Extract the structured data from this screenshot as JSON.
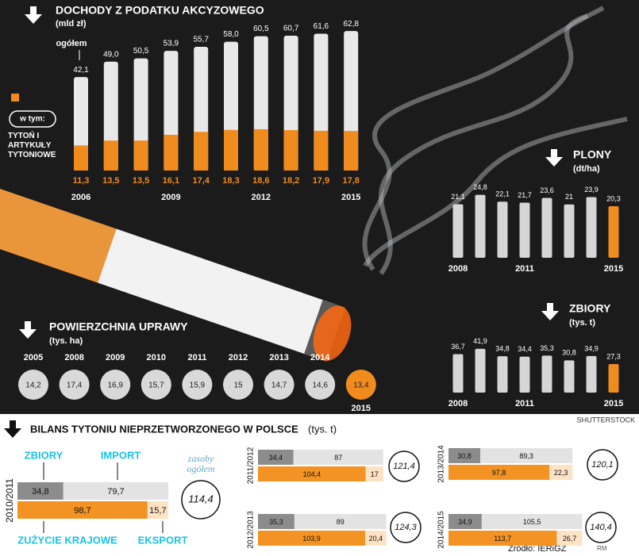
{
  "chart_data": [
    {
      "type": "cigarette_bar",
      "title": "DOCHODY Z PODATKU AKCYZOWEGO",
      "subtitle": "(mld zł)",
      "legend_note": "w tym:",
      "categories": [
        "2006",
        null,
        null,
        "2009",
        null,
        null,
        "2012",
        null,
        null,
        "2015"
      ],
      "series": [
        {
          "name": "ogółem",
          "color": "#e8e8e8",
          "values": [
            42.1,
            49.0,
            50.5,
            53.9,
            55.7,
            58.0,
            60.5,
            60.7,
            61.6,
            62.8
          ],
          "value_labels": [
            "42,1",
            "49,0",
            "50,5",
            "53,9",
            "55,7",
            "58,0",
            "60,5",
            "60,7",
            "61,6",
            "62,8"
          ]
        },
        {
          "name": "TYTOŃ I ARTYKUŁY TYTONIOWE",
          "color": "#f08c1e",
          "values": [
            11.3,
            13.5,
            13.5,
            16.1,
            17.4,
            18.3,
            18.6,
            18.2,
            17.9,
            17.8
          ],
          "value_labels": [
            "11,3",
            "13,5",
            "13,5",
            "16,1",
            "17,4",
            "18,3",
            "18,6",
            "18,2",
            "17,9",
            "17,8"
          ]
        }
      ]
    },
    {
      "type": "bar",
      "title": "PLONY",
      "subtitle": "(dt/ha)",
      "categories": [
        "2008",
        null,
        null,
        "2011",
        null,
        null,
        null,
        "2015"
      ],
      "values": [
        21.1,
        24.8,
        22.1,
        21.7,
        23.6,
        21,
        23.9,
        20.3
      ],
      "value_labels": [
        "21,1",
        "24,8",
        "22,1",
        "21,7",
        "23,6",
        "21",
        "23,9",
        "20,3"
      ],
      "colors": [
        "#d6d6d6",
        "#d6d6d6",
        "#d6d6d6",
        "#d6d6d6",
        "#d6d6d6",
        "#d6d6d6",
        "#d6d6d6",
        "#f08c1e"
      ]
    },
    {
      "type": "bar",
      "title": "ZBIORY",
      "subtitle": "(tys. t)",
      "categories": [
        "2008",
        null,
        null,
        "2011",
        null,
        null,
        null,
        "2015"
      ],
      "values": [
        36.7,
        41.9,
        34.8,
        34.4,
        35.3,
        30.8,
        34.9,
        27.3
      ],
      "value_labels": [
        "36,7",
        "41,9",
        "34,8",
        "34,4",
        "35,3",
        "30,8",
        "34,9",
        "27,3"
      ],
      "colors": [
        "#d6d6d6",
        "#d6d6d6",
        "#d6d6d6",
        "#d6d6d6",
        "#d6d6d6",
        "#d6d6d6",
        "#d6d6d6",
        "#f08c1e"
      ]
    },
    {
      "type": "circles",
      "title": "POWIERZCHNIA UPRAWY",
      "subtitle": "(tys. ha)",
      "categories": [
        "2005",
        "2008",
        "2009",
        "2010",
        "2011",
        "2012",
        "2013",
        "2014",
        "2015"
      ],
      "values": [
        14.2,
        17.4,
        16.9,
        15.7,
        15.9,
        15,
        14.7,
        14.6,
        13.4
      ],
      "value_labels": [
        "14,2",
        "17,4",
        "16,9",
        "15,7",
        "15,9",
        "15",
        "14,7",
        "14,6",
        "13,4"
      ],
      "colors": [
        "#d9d9d9",
        "#d9d9d9",
        "#d9d9d9",
        "#d9d9d9",
        "#d9d9d9",
        "#d9d9d9",
        "#d9d9d9",
        "#d9d9d9",
        "#f08c1e"
      ]
    },
    {
      "type": "balance",
      "title": "BILANS TYTONIU NIEPRZETWORZONEGO W POLSCE",
      "subtitle": "(tys. t)",
      "categories": [
        "2010/2011",
        "2011/2012",
        "2013/2014",
        "2012/2013",
        "2014/2015"
      ],
      "series": [
        {
          "name": "ZBIORY",
          "color": "#8c8c8c",
          "values": [
            34.8,
            34.4,
            30.8,
            35.3,
            34.9
          ],
          "value_labels": [
            "34,8",
            "34,4",
            "30,8",
            "35,3",
            "34,9"
          ]
        },
        {
          "name": "IMPORT",
          "color": "#e3e3e3",
          "values": [
            79.7,
            87,
            89.3,
            89,
            105.5
          ],
          "value_labels": [
            "79,7",
            "87",
            "89,3",
            "89",
            "105,5"
          ]
        },
        {
          "name": "ZUŻYCIE KRAJOWE",
          "color": "#f39323",
          "values": [
            98.7,
            104.4,
            97.8,
            103.9,
            113.7
          ],
          "value_labels": [
            "98,7",
            "104,4",
            "97,8",
            "103,9",
            "113,7"
          ]
        },
        {
          "name": "EKSPORT",
          "color": "#fde3c4",
          "values": [
            15.7,
            17,
            22.3,
            20.4,
            26.7
          ],
          "value_labels": [
            "15,7",
            "17",
            "22,3",
            "20,4",
            "26,7"
          ]
        },
        {
          "name": "zasoby ogółem",
          "color": "#ffffff",
          "values": [
            114.4,
            121.4,
            120.1,
            124.3,
            140.4
          ],
          "value_labels": [
            "114,4",
            "121,4",
            "120,1",
            "124,3",
            "140,4"
          ]
        }
      ]
    }
  ],
  "credit": "SHUTTERSTOCK",
  "source": "Źródło: IERiGŻ",
  "author": "RM"
}
